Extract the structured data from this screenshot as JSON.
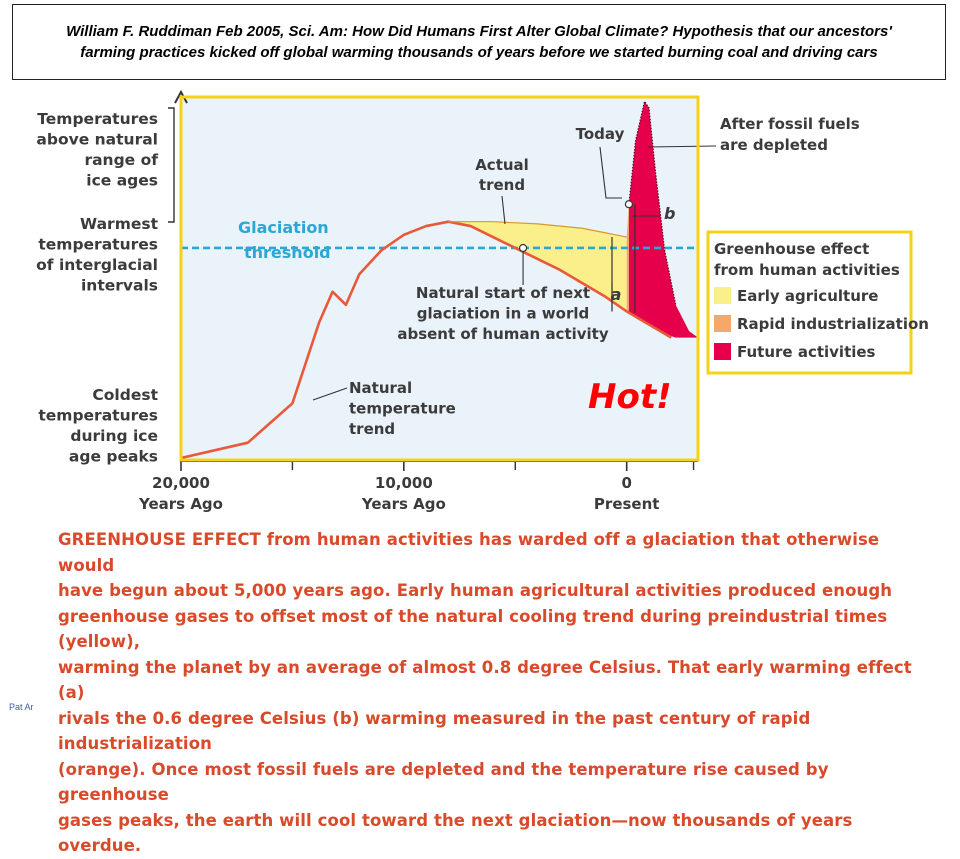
{
  "title": {
    "line1": "William F. Ruddiman Feb 2005, Sci. Am:  How Did Humans First Alter Global Climate? Hypothesis that our ancestors'",
    "line2": "farming practices kicked off global warming thousands of years before we started burning coal and driving cars"
  },
  "chart_data": {
    "type": "area",
    "x_axis": {
      "ticks": [
        {
          "value": -20000,
          "label1": "20,000",
          "label2": "Years Ago"
        },
        {
          "value": -10000,
          "label1": "10,000",
          "label2": "Years Ago"
        },
        {
          "value": 0,
          "label1": "0",
          "label2": "Present"
        }
      ],
      "range": [
        -20000,
        3200
      ]
    },
    "y_axis": {
      "labels": [
        {
          "level": 1.35,
          "lines": [
            "Temperatures",
            "above natural",
            "range of",
            "ice ages"
          ]
        },
        {
          "level": 1.0,
          "lines": [
            "Warmest",
            "temperatures",
            "of interglacial",
            "intervals"
          ]
        },
        {
          "level": 0.0,
          "lines": [
            "Coldest",
            "temperatures",
            "during ice",
            "age peaks"
          ]
        }
      ],
      "range": [
        0,
        1.65
      ]
    },
    "glaciation_threshold": {
      "level": 0.96,
      "label_lines": [
        "Glaciation",
        "threshold"
      ]
    },
    "series": [
      {
        "name": "Natural temperature trend",
        "x": [
          -20000,
          -17000,
          -15000,
          -13800,
          -13200,
          -12600,
          -12000,
          -11000,
          -10000,
          -9000,
          -8000,
          -7000,
          -6000,
          -5000,
          -4000,
          -3000,
          -2000,
          -1000,
          0,
          1000,
          2000
        ],
        "y": [
          0.0,
          0.07,
          0.25,
          0.62,
          0.76,
          0.7,
          0.84,
          0.95,
          1.02,
          1.06,
          1.08,
          1.06,
          1.01,
          0.96,
          0.91,
          0.86,
          0.8,
          0.74,
          0.67,
          0.61,
          0.55
        ]
      },
      {
        "name": "Actual trend",
        "x": [
          -8000,
          -6000,
          -4000,
          -2000,
          -1000,
          -500,
          0
        ],
        "y": [
          1.08,
          1.08,
          1.07,
          1.05,
          1.03,
          1.02,
          1.01
        ]
      },
      {
        "name": "Rapid industrialization",
        "x": [
          0,
          100
        ],
        "y": [
          1.01,
          1.16
        ]
      },
      {
        "name": "Future activities",
        "x": [
          100,
          400,
          800,
          1000,
          1300,
          1700,
          2200,
          2800,
          3200
        ],
        "y": [
          1.16,
          1.45,
          1.63,
          1.6,
          1.3,
          0.95,
          0.7,
          0.58,
          0.55
        ]
      }
    ],
    "annotations": {
      "actual_trend": [
        "Actual",
        "trend"
      ],
      "natural_start": [
        "Natural start of next",
        "glaciation in a world",
        "absent of human activity"
      ],
      "natural_trend": [
        "Natural",
        "temperature",
        "trend"
      ],
      "today": "Today",
      "fossil": [
        "After fossil fuels",
        "are depleted"
      ],
      "a": "a",
      "b": "b"
    },
    "legend": {
      "title_lines": [
        "Greenhouse effect",
        "from human activities"
      ],
      "placement": "right",
      "items": [
        {
          "label": "Early agriculture",
          "color": "#fbef8c"
        },
        {
          "label": "Rapid industrialization",
          "color": "#f4a86a"
        },
        {
          "label": "Future activities",
          "color": "#e6004c"
        }
      ]
    },
    "colors": {
      "plot_bg": "#eaf2fa",
      "frame": "#f5d21a",
      "curve": "#e8593a",
      "threshold": "#29a8d6",
      "early_agriculture": "#fbef8c",
      "industrial": "#f4a86a",
      "future": "#e6004c"
    }
  },
  "hot_label": "Hot!",
  "caption": {
    "lines": [
      "GREENHOUSE EFFECT from human activities has warded off a glaciation that otherwise would",
      "have begun about 5,000 years ago. Early human agricultural activities produced enough",
      "greenhouse gases to offset most of the natural cooling trend during preindustrial times (yellow),",
      "warming the planet by an average of almost 0.8 degree Celsius. That early warming effect (a)",
      "rivals the 0.6 degree Celsius (b) warming measured in the past century of rapid industrialization",
      "(orange). Once most fossil fuels are depleted and the temperature rise caused by greenhouse",
      "gases peaks, the earth will cool toward the next glaciation—now thousands of years overdue."
    ]
  },
  "footer": "Pat Ar"
}
